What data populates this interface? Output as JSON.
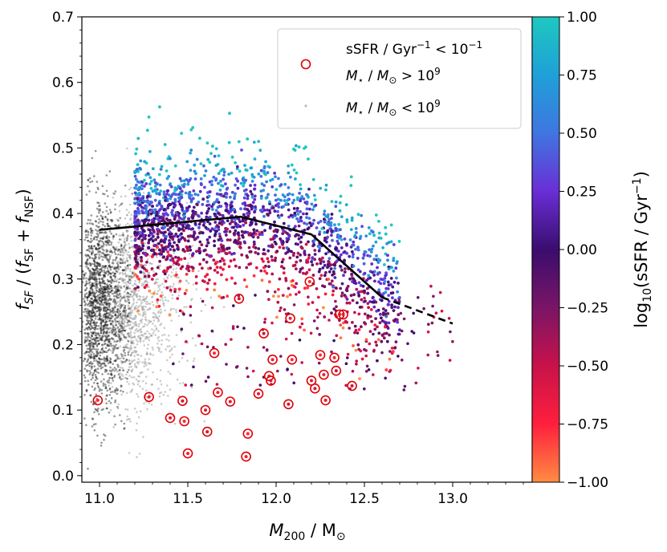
{
  "chart_data": {
    "type": "scatter",
    "xlabel": "M200 / M⊙",
    "ylabel": "fSF / (fSF + fNSF)",
    "xlim": [
      10.9,
      13.45
    ],
    "ylim": [
      -0.01,
      0.7
    ],
    "xticks": [
      "11.0",
      "11.5",
      "12.0",
      "12.5",
      "13.0"
    ],
    "xtick_values": [
      11.0,
      11.5,
      12.0,
      12.5,
      13.0
    ],
    "yticks": [
      "0.0",
      "0.1",
      "0.2",
      "0.3",
      "0.4",
      "0.5",
      "0.6",
      "0.7"
    ],
    "ytick_values": [
      0.0,
      0.1,
      0.2,
      0.3,
      0.4,
      0.5,
      0.6,
      0.7
    ],
    "colorbar": {
      "label": "log10(sSFR / Gyr−1)",
      "range": [
        -1.0,
        1.0
      ],
      "ticks": [
        "1.00",
        "0.75",
        "0.50",
        "0.25",
        "0.00",
        "−0.25",
        "−0.50",
        "−0.75",
        "−1.00"
      ],
      "tick_values": [
        1.0,
        0.75,
        0.5,
        0.25,
        0.0,
        -0.25,
        -0.5,
        -0.75,
        -1.0
      ],
      "colors": [
        "#ff8c42",
        "#ff1f3d",
        "#c8124a",
        "#7a1566",
        "#3a0d6e",
        "#6a2ed6",
        "#3f76e0",
        "#1fa0d8",
        "#1ec8c0"
      ]
    },
    "legend": {
      "position": "top-right",
      "entries": [
        {
          "marker": "open-circle",
          "color": "#e00000",
          "line1": "sSFR / Gyr−1 < 10−1",
          "line2": "M⋆ / M⊙ > 109"
        },
        {
          "marker": "small-dot",
          "color": "#bbbbbb",
          "line1": "M⋆ / M⊙ < 109"
        }
      ]
    },
    "median_line": {
      "color": "#000000",
      "solid": {
        "x": [
          11.0,
          11.8,
          12.2,
          12.6
        ],
        "y": [
          0.375,
          0.395,
          0.368,
          0.272
        ]
      },
      "dashed": {
        "x": [
          12.6,
          13.0
        ],
        "y": [
          0.272,
          0.232
        ]
      }
    },
    "low_ssfr_points": {
      "x": [
        10.99,
        11.28,
        11.4,
        11.47,
        11.48,
        11.5,
        11.6,
        11.61,
        11.65,
        11.67,
        11.74,
        11.79,
        11.84,
        11.83,
        11.9,
        11.93,
        11.96,
        11.98,
        11.97,
        12.07,
        12.09,
        12.08,
        12.2,
        12.22,
        12.25,
        12.27,
        12.28,
        12.34,
        12.33,
        12.36,
        12.38,
        12.43,
        12.19
      ],
      "y": [
        0.115,
        0.12,
        0.088,
        0.114,
        0.083,
        0.034,
        0.1,
        0.067,
        0.187,
        0.127,
        0.113,
        0.27,
        0.064,
        0.029,
        0.125,
        0.217,
        0.152,
        0.177,
        0.145,
        0.109,
        0.177,
        0.24,
        0.145,
        0.133,
        0.184,
        0.154,
        0.115,
        0.16,
        0.18,
        0.246,
        0.246,
        0.137,
        0.296
      ]
    }
  }
}
